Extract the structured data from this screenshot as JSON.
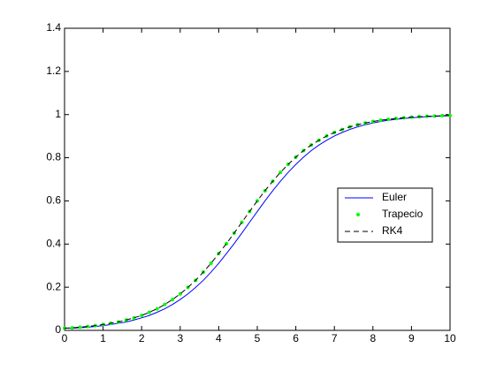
{
  "chart_data": {
    "type": "line",
    "x": [
      0,
      0.2,
      0.4,
      0.6,
      0.8,
      1,
      1.2,
      1.4,
      1.6,
      1.8,
      2,
      2.2,
      2.4,
      2.6,
      2.8,
      3,
      3.2,
      3.4,
      3.6,
      3.8,
      4,
      4.2,
      4.4,
      4.6,
      4.8,
      5,
      5.2,
      5.4,
      5.6,
      5.8,
      6,
      6.2,
      6.4,
      6.6,
      6.8,
      7,
      7.2,
      7.4,
      7.6,
      7.8,
      8,
      8.2,
      8.4,
      8.6,
      8.8,
      9,
      9.2,
      9.4,
      9.6,
      9.8,
      10
    ],
    "series": [
      {
        "name": "Euler",
        "color": "#0000ff",
        "style": "solid",
        "values": [
          0.01,
          0.01,
          0.012,
          0.015,
          0.018,
          0.022,
          0.027,
          0.033,
          0.039,
          0.048,
          0.058,
          0.069,
          0.084,
          0.1,
          0.12,
          0.143,
          0.169,
          0.199,
          0.232,
          0.27,
          0.311,
          0.356,
          0.402,
          0.451,
          0.501,
          0.551,
          0.6,
          0.647,
          0.691,
          0.732,
          0.769,
          0.803,
          0.833,
          0.859,
          0.881,
          0.901,
          0.917,
          0.931,
          0.943,
          0.953,
          0.961,
          0.968,
          0.974,
          0.978,
          0.982,
          0.985,
          0.988,
          0.99,
          0.992,
          0.993,
          0.995
        ]
      },
      {
        "name": "Trapecio",
        "color": "#00ff00",
        "style": "dots",
        "values": [
          0.01,
          0.012,
          0.015,
          0.018,
          0.022,
          0.027,
          0.033,
          0.039,
          0.048,
          0.058,
          0.069,
          0.084,
          0.1,
          0.12,
          0.143,
          0.169,
          0.199,
          0.232,
          0.27,
          0.311,
          0.356,
          0.402,
          0.451,
          0.501,
          0.551,
          0.6,
          0.647,
          0.691,
          0.732,
          0.769,
          0.803,
          0.833,
          0.859,
          0.881,
          0.901,
          0.917,
          0.931,
          0.943,
          0.953,
          0.961,
          0.968,
          0.974,
          0.978,
          0.982,
          0.985,
          0.988,
          0.99,
          0.992,
          0.993,
          0.995,
          0.996
        ]
      },
      {
        "name": "RK4",
        "color": "#000000",
        "style": "dashed",
        "values": [
          0.01,
          0.012,
          0.015,
          0.018,
          0.022,
          0.027,
          0.033,
          0.039,
          0.048,
          0.058,
          0.069,
          0.084,
          0.1,
          0.12,
          0.143,
          0.169,
          0.199,
          0.232,
          0.27,
          0.311,
          0.356,
          0.402,
          0.451,
          0.501,
          0.551,
          0.6,
          0.647,
          0.691,
          0.732,
          0.769,
          0.803,
          0.833,
          0.859,
          0.881,
          0.901,
          0.917,
          0.931,
          0.943,
          0.953,
          0.961,
          0.968,
          0.974,
          0.978,
          0.982,
          0.985,
          0.988,
          0.99,
          0.992,
          0.993,
          0.995,
          0.996
        ]
      }
    ],
    "xlim": [
      0,
      10
    ],
    "xticks": [
      0,
      1,
      2,
      3,
      4,
      5,
      6,
      7,
      8,
      9,
      10
    ],
    "ylim": [
      0,
      1.4
    ],
    "yticks": [
      0,
      0.2,
      0.4,
      0.6,
      0.8,
      1,
      1.2,
      1.4
    ],
    "legend": "east"
  }
}
